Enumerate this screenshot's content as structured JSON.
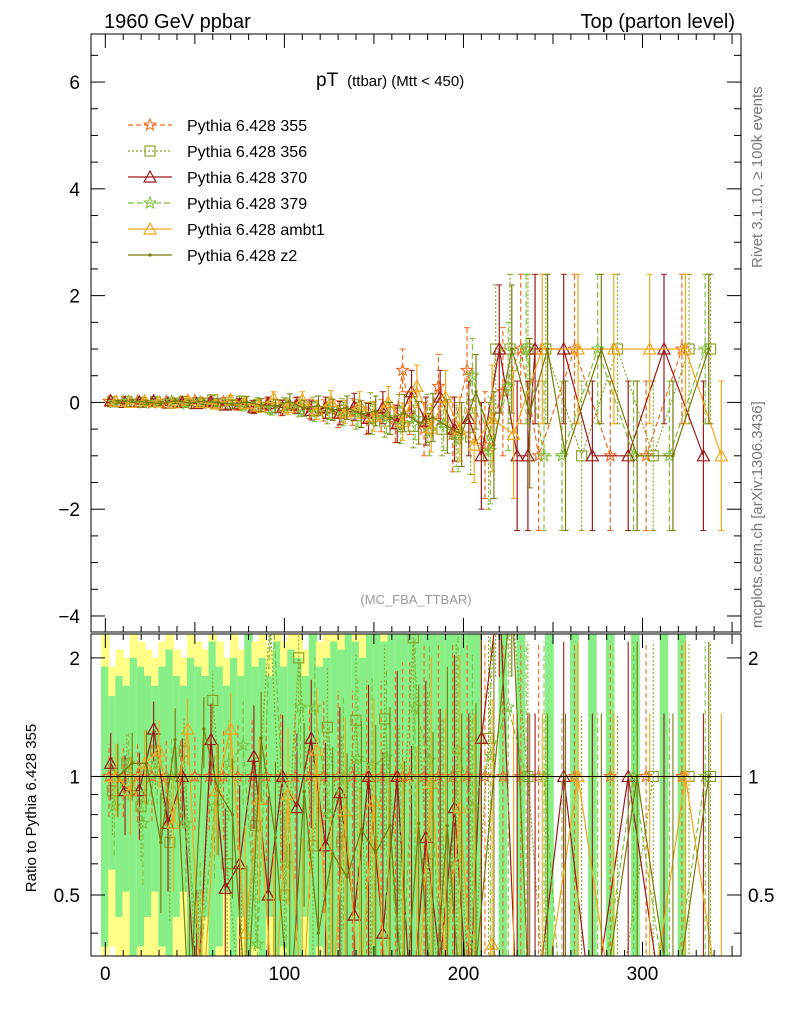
{
  "header": {
    "left": "1960 GeV ppbar",
    "right": "Top (parton level)"
  },
  "side_labels": {
    "rivet": "Rivet 3.1.10, ≥ 100k events",
    "mcplots": "mcplots.cern.ch [arXiv:1306.3436]"
  },
  "chart_data": {
    "type": "line",
    "title": "pT (ttbar) (Mtt < 450)",
    "title_main": "pT",
    "title_sub": "(ttbar) (Mtt < 450)",
    "annotation": "(MC_FBA_TTBAR)",
    "xlabel": "",
    "ylabel": "",
    "xlim": [
      -8,
      355
    ],
    "ylim": [
      -4.3,
      6.9
    ],
    "xticks": [
      0,
      100,
      200,
      300
    ],
    "yticks": [
      -4,
      -2,
      0,
      2,
      4,
      6
    ],
    "ratio": {
      "ylabel": "Ratio to Pythia 6.428 355",
      "ylim": [
        0.35,
        2.3
      ],
      "yticks": [
        0.5,
        1,
        2
      ],
      "reference_line": 1,
      "band_x": [
        0,
        4,
        8,
        12,
        16,
        20,
        24,
        28,
        32,
        36,
        40,
        44,
        48,
        52,
        56,
        60,
        64,
        68,
        72,
        76,
        80,
        84,
        88,
        92,
        96,
        100,
        104,
        108,
        112,
        116,
        120,
        124,
        128,
        132,
        136,
        140,
        144,
        148,
        152,
        156,
        160,
        164,
        168,
        172,
        176,
        180,
        184,
        188,
        192,
        196,
        200,
        204,
        208,
        222,
        232,
        248,
        262,
        272,
        282,
        296,
        312,
        322
      ],
      "band_inner": [
        0.9,
        0.6,
        0.8,
        0.7,
        1.0,
        0.9,
        0.8,
        0.7,
        0.9,
        1.1,
        0.8,
        0.7,
        1.0,
        0.9,
        0.8,
        1.2,
        0.9,
        0.7,
        1.0,
        0.8,
        1.3,
        0.9,
        1.0,
        0.8,
        1.2,
        0.9,
        1.1,
        1.0,
        0.8,
        1.3,
        0.9,
        1.0,
        1.2,
        1.1,
        1.3,
        1.2,
        1.0,
        1.4,
        1.3,
        1.2,
        1.4,
        1.5,
        1.3,
        1.4,
        1.6,
        1.5,
        1.6,
        1.5,
        1.7,
        1.6,
        1.7,
        1.8,
        1.8,
        2.0,
        2.0,
        2.0,
        2.0,
        2.0,
        2.0,
        2.0,
        2.0,
        2.0
      ],
      "band_outer": [
        1.3,
        0.9,
        1.1,
        1.0,
        1.3,
        1.2,
        1.1,
        1.0,
        1.2,
        1.4,
        1.1,
        1.0,
        1.3,
        1.2,
        1.1,
        1.5,
        1.2,
        1.0,
        1.3,
        1.1,
        1.6,
        1.2,
        1.3,
        1.1,
        1.5,
        1.2,
        1.4,
        1.3,
        1.1,
        1.6,
        1.2,
        1.3,
        1.5,
        1.4,
        1.6,
        1.5,
        1.3,
        1.7,
        1.6,
        1.5,
        1.7,
        1.8,
        1.6,
        1.7,
        1.9,
        1.8,
        1.9,
        1.8,
        2.0,
        1.9,
        2.0,
        2.1,
        2.1,
        2.2,
        2.2,
        2.2,
        2.2,
        2.2,
        2.2,
        2.2,
        2.2,
        2.2
      ]
    },
    "series": [
      {
        "name": "Pythia 6.428 355",
        "color": "#f26a1f",
        "marker": "star",
        "dash": "5,3",
        "x": [
          2,
          10,
          18,
          26,
          34,
          42,
          50,
          58,
          66,
          74,
          82,
          90,
          98,
          106,
          114,
          122,
          130,
          138,
          146,
          154,
          162,
          166,
          170,
          178,
          186,
          194,
          202,
          212,
          222,
          232,
          242,
          262,
          282,
          302,
          322
        ],
        "y": [
          0.02,
          0.01,
          0.02,
          -0.01,
          0.02,
          0.0,
          0.03,
          -0.02,
          0.01,
          -0.05,
          -0.08,
          -0.04,
          -0.1,
          -0.06,
          -0.12,
          -0.15,
          -0.22,
          -0.18,
          -0.3,
          -0.25,
          -0.4,
          0.6,
          -0.2,
          -0.5,
          0.3,
          -0.6,
          0.6,
          -0.8,
          0.2,
          1.0,
          -1.0,
          1.0,
          -1.0,
          -1.0,
          1.0
        ],
        "err": [
          0.03,
          0.03,
          0.04,
          0.04,
          0.05,
          0.05,
          0.06,
          0.06,
          0.08,
          0.1,
          0.12,
          0.12,
          0.15,
          0.15,
          0.18,
          0.2,
          0.25,
          0.25,
          0.3,
          0.3,
          0.35,
          0.4,
          0.4,
          0.5,
          0.6,
          0.7,
          0.8,
          1.0,
          1.2,
          1.4,
          1.4,
          1.4,
          1.4,
          1.4,
          1.4
        ]
      },
      {
        "name": "Pythia 6.428 356",
        "color": "#8fa42a",
        "marker": "square",
        "dash": "2,2",
        "x": [
          4,
          12,
          20,
          28,
          36,
          44,
          52,
          60,
          68,
          76,
          84,
          92,
          100,
          108,
          116,
          124,
          132,
          140,
          148,
          156,
          164,
          172,
          180,
          188,
          196,
          204,
          214,
          218,
          226,
          236,
          246,
          266,
          286,
          306,
          326,
          338
        ],
        "y": [
          0.01,
          0.02,
          0.0,
          0.01,
          -0.02,
          0.02,
          -0.01,
          0.05,
          -0.04,
          0.02,
          -0.06,
          -0.1,
          -0.05,
          -0.12,
          -0.08,
          -0.2,
          -0.15,
          -0.25,
          -0.1,
          -0.35,
          -0.2,
          -0.45,
          -0.3,
          -0.5,
          -0.6,
          -0.65,
          -1.0,
          1.0,
          1.0,
          1.0,
          1.0,
          -1.0,
          1.0,
          -1.0,
          1.0,
          1.0
        ],
        "err": [
          0.03,
          0.03,
          0.04,
          0.04,
          0.05,
          0.05,
          0.06,
          0.07,
          0.08,
          0.1,
          0.12,
          0.12,
          0.14,
          0.15,
          0.18,
          0.2,
          0.22,
          0.25,
          0.28,
          0.3,
          0.35,
          0.4,
          0.45,
          0.5,
          0.6,
          0.7,
          1.0,
          1.2,
          1.4,
          1.4,
          1.4,
          1.4,
          1.4,
          1.4,
          1.4,
          1.4
        ]
      },
      {
        "name": "Pythia 6.428 370",
        "color": "#9b1b1b",
        "marker": "triangle",
        "dash": "",
        "x": [
          3,
          11,
          19,
          27,
          35,
          43,
          51,
          59,
          67,
          75,
          83,
          91,
          99,
          107,
          115,
          123,
          131,
          139,
          147,
          155,
          163,
          171,
          179,
          187,
          195,
          203,
          210,
          220,
          230,
          236,
          240,
          256,
          272,
          292,
          312,
          334
        ],
        "y": [
          0.03,
          0.0,
          0.01,
          0.03,
          -0.01,
          0.0,
          -0.02,
          0.01,
          -0.05,
          -0.03,
          -0.09,
          -0.02,
          -0.1,
          -0.05,
          -0.15,
          -0.1,
          -0.2,
          -0.08,
          -0.3,
          -0.1,
          -0.4,
          0.2,
          -0.35,
          0.1,
          -0.5,
          -0.3,
          -1.0,
          1.0,
          -1.0,
          -1.0,
          1.0,
          1.0,
          -1.0,
          -1.0,
          1.0,
          -1.0
        ],
        "err": [
          0.03,
          0.03,
          0.04,
          0.04,
          0.05,
          0.05,
          0.06,
          0.07,
          0.08,
          0.1,
          0.12,
          0.12,
          0.14,
          0.15,
          0.18,
          0.2,
          0.22,
          0.25,
          0.28,
          0.3,
          0.35,
          0.4,
          0.45,
          0.5,
          0.6,
          0.7,
          1.0,
          1.2,
          1.4,
          1.4,
          1.4,
          1.4,
          1.4,
          1.4,
          1.4,
          1.4
        ]
      },
      {
        "name": "Pythia 6.428 379",
        "color": "#7fc241",
        "marker": "star",
        "dash": "6,3",
        "x": [
          5,
          13,
          21,
          29,
          37,
          45,
          53,
          61,
          69,
          77,
          85,
          93,
          101,
          109,
          117,
          125,
          133,
          141,
          149,
          157,
          165,
          173,
          181,
          189,
          197,
          205,
          215,
          225,
          235,
          245,
          255,
          275,
          295,
          315,
          335
        ],
        "y": [
          0.0,
          0.02,
          -0.01,
          0.0,
          0.02,
          -0.03,
          0.01,
          -0.04,
          0.02,
          -0.06,
          -0.03,
          -0.12,
          -0.06,
          -0.09,
          -0.18,
          -0.12,
          -0.22,
          -0.2,
          -0.32,
          -0.28,
          -0.42,
          -0.3,
          -0.55,
          -0.4,
          -0.7,
          0.5,
          -0.9,
          0.3,
          1.0,
          -1.0,
          -1.0,
          1.0,
          -1.0,
          -1.0,
          1.0
        ],
        "err": [
          0.03,
          0.03,
          0.04,
          0.04,
          0.05,
          0.05,
          0.06,
          0.07,
          0.08,
          0.1,
          0.12,
          0.12,
          0.14,
          0.15,
          0.18,
          0.2,
          0.22,
          0.25,
          0.28,
          0.3,
          0.35,
          0.4,
          0.45,
          0.5,
          0.6,
          0.7,
          1.0,
          1.2,
          1.4,
          1.4,
          1.4,
          1.4,
          1.4,
          1.4,
          1.4
        ]
      },
      {
        "name": "Pythia 6.428 ambt1",
        "color": "#f2a71c",
        "marker": "triangle",
        "dash": "",
        "x": [
          6,
          14,
          22,
          30,
          38,
          46,
          54,
          62,
          70,
          78,
          86,
          94,
          102,
          110,
          118,
          126,
          134,
          142,
          150,
          158,
          166,
          174,
          182,
          190,
          198,
          206,
          216,
          228,
          244,
          264,
          284,
          304,
          324,
          344
        ],
        "y": [
          0.02,
          0.0,
          0.03,
          0.01,
          -0.01,
          0.04,
          0.0,
          -0.03,
          0.05,
          -0.02,
          -0.07,
          0.08,
          -0.09,
          0.05,
          -0.14,
          0.02,
          -0.18,
          -0.05,
          -0.26,
          0.0,
          -0.36,
          0.3,
          -0.48,
          0.1,
          -0.5,
          -0.8,
          -0.3,
          -0.6,
          1.0,
          1.0,
          1.0,
          1.0,
          1.0,
          -1.0
        ],
        "err": [
          0.03,
          0.03,
          0.04,
          0.04,
          0.05,
          0.05,
          0.06,
          0.07,
          0.08,
          0.1,
          0.12,
          0.12,
          0.14,
          0.15,
          0.18,
          0.2,
          0.22,
          0.25,
          0.28,
          0.3,
          0.35,
          0.4,
          0.45,
          0.5,
          0.6,
          0.7,
          1.0,
          1.2,
          1.4,
          1.4,
          1.4,
          1.4,
          1.4,
          1.4
        ]
      },
      {
        "name": "Pythia 6.428 z2",
        "color": "#7a7a0e",
        "marker": "dot",
        "dash": "",
        "x": [
          7,
          15,
          23,
          31,
          39,
          47,
          55,
          63,
          71,
          79,
          87,
          95,
          103,
          111,
          119,
          127,
          135,
          143,
          151,
          159,
          167,
          175,
          183,
          191,
          199,
          207,
          217,
          227,
          237,
          247,
          257,
          277,
          297,
          317,
          337
        ],
        "y": [
          0.01,
          0.03,
          0.0,
          -0.02,
          0.03,
          -0.01,
          0.02,
          0.0,
          -0.04,
          0.01,
          -0.05,
          -0.07,
          0.02,
          -0.11,
          -0.06,
          -0.14,
          -0.1,
          -0.22,
          -0.16,
          -0.3,
          -0.2,
          -0.38,
          -0.28,
          -0.45,
          -0.6,
          0.2,
          -0.8,
          1.0,
          -0.2,
          1.0,
          -1.0,
          1.0,
          -1.0,
          -1.0,
          1.0
        ],
        "err": [
          0.03,
          0.03,
          0.04,
          0.04,
          0.05,
          0.05,
          0.06,
          0.07,
          0.08,
          0.1,
          0.12,
          0.12,
          0.14,
          0.15,
          0.18,
          0.2,
          0.22,
          0.25,
          0.28,
          0.3,
          0.35,
          0.4,
          0.45,
          0.5,
          0.6,
          0.7,
          1.0,
          1.2,
          1.4,
          1.4,
          1.4,
          1.4,
          1.4,
          1.4,
          1.4
        ]
      }
    ]
  }
}
